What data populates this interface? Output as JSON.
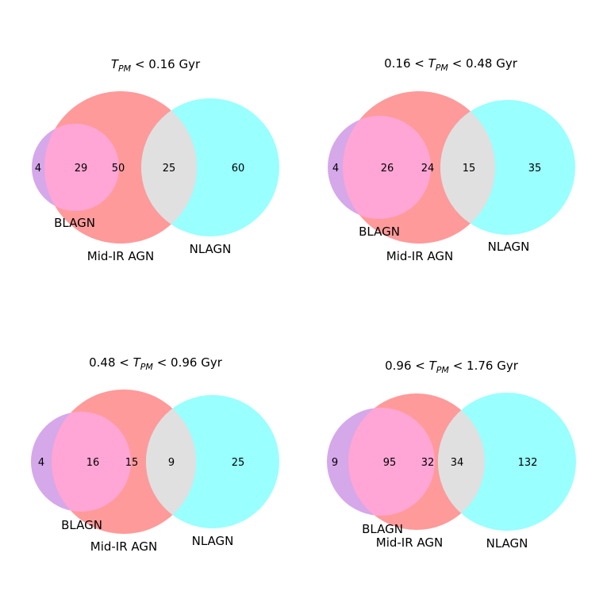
{
  "colors": {
    "blagn": "#d5a8ea",
    "midir": "#ff9a9a",
    "nlagn": "#99ffff",
    "blagn_midir": "#ffa6d6",
    "midir_nlagn": "#e0e0e0"
  },
  "panels": [
    {
      "title_parts": [
        {
          "t": "T",
          "style": "italic"
        },
        {
          "t": "PM",
          "style": "italic-sub"
        },
        {
          "t": " < 0.16 Gyr",
          "style": "normal"
        }
      ],
      "counts": {
        "blagn_only": "4",
        "blagn_midir": "29",
        "midir_only": "50",
        "midir_nlagn": "25",
        "nlagn_only": "60"
      },
      "labels": {
        "blagn": "BLAGN",
        "midir": "Mid-IR AGN",
        "nlagn": "NLAGN"
      }
    },
    {
      "title_parts": [
        {
          "t": "0.16 < ",
          "style": "normal"
        },
        {
          "t": "T",
          "style": "italic"
        },
        {
          "t": "PM",
          "style": "italic-sub"
        },
        {
          "t": " < 0.48 Gyr",
          "style": "normal"
        }
      ],
      "counts": {
        "blagn_only": "4",
        "blagn_midir": "26",
        "midir_only": "24",
        "midir_nlagn": "15",
        "nlagn_only": "35"
      },
      "labels": {
        "blagn": "BLAGN",
        "midir": "Mid-IR AGN",
        "nlagn": "NLAGN"
      }
    },
    {
      "title_parts": [
        {
          "t": "0.48 < ",
          "style": "normal"
        },
        {
          "t": "T",
          "style": "italic"
        },
        {
          "t": "PM",
          "style": "italic-sub"
        },
        {
          "t": " < 0.96 Gyr",
          "style": "normal"
        }
      ],
      "counts": {
        "blagn_only": "4",
        "blagn_midir": "16",
        "midir_only": "15",
        "midir_nlagn": "9",
        "nlagn_only": "25"
      },
      "labels": {
        "blagn": "BLAGN",
        "midir": "Mid-IR AGN",
        "nlagn": "NLAGN"
      }
    },
    {
      "title_parts": [
        {
          "t": "0.96 < ",
          "style": "normal"
        },
        {
          "t": "T",
          "style": "italic"
        },
        {
          "t": "PM",
          "style": "italic-sub"
        },
        {
          "t": " < 1.76 Gyr",
          "style": "normal"
        }
      ],
      "counts": {
        "blagn_only": "9",
        "blagn_midir": "95",
        "midir_only": "32",
        "midir_nlagn": "34",
        "nlagn_only": "132"
      },
      "labels": {
        "blagn": "BLAGN",
        "midir": "Mid-IR AGN",
        "nlagn": "NLAGN"
      }
    }
  ]
}
